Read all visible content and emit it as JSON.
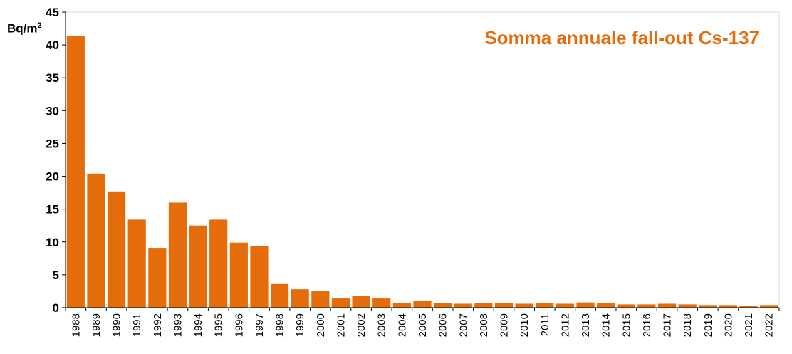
{
  "chart_data": {
    "type": "bar",
    "title": "Somma annuale fall-out Cs-137",
    "ylabel_unit": "Bq/m",
    "ylabel_sup": "2",
    "xlabel": "",
    "ylim": [
      0,
      45
    ],
    "yticks": [
      0,
      5,
      10,
      15,
      20,
      25,
      30,
      35,
      40,
      45
    ],
    "grid": false,
    "bar_color": "#E46C0A",
    "categories": [
      "1988",
      "1989",
      "1990",
      "1991",
      "1992",
      "1993",
      "1994",
      "1995",
      "1996",
      "1997",
      "1998",
      "1999",
      "2000",
      "2001",
      "2002",
      "2003",
      "2004",
      "2005",
      "2006",
      "2007",
      "2008",
      "2009",
      "2010",
      "2011",
      "2012",
      "2013",
      "2014",
      "2015",
      "2016",
      "2017",
      "2018",
      "2019",
      "2020",
      "2021",
      "2022"
    ],
    "values": [
      41.4,
      20.4,
      17.7,
      13.4,
      9.1,
      16.0,
      12.5,
      13.4,
      9.9,
      9.4,
      3.6,
      2.8,
      2.5,
      1.4,
      1.8,
      1.4,
      0.7,
      1.0,
      0.7,
      0.6,
      0.7,
      0.7,
      0.6,
      0.7,
      0.6,
      0.8,
      0.7,
      0.5,
      0.5,
      0.6,
      0.5,
      0.4,
      0.4,
      0.3,
      0.4
    ]
  }
}
